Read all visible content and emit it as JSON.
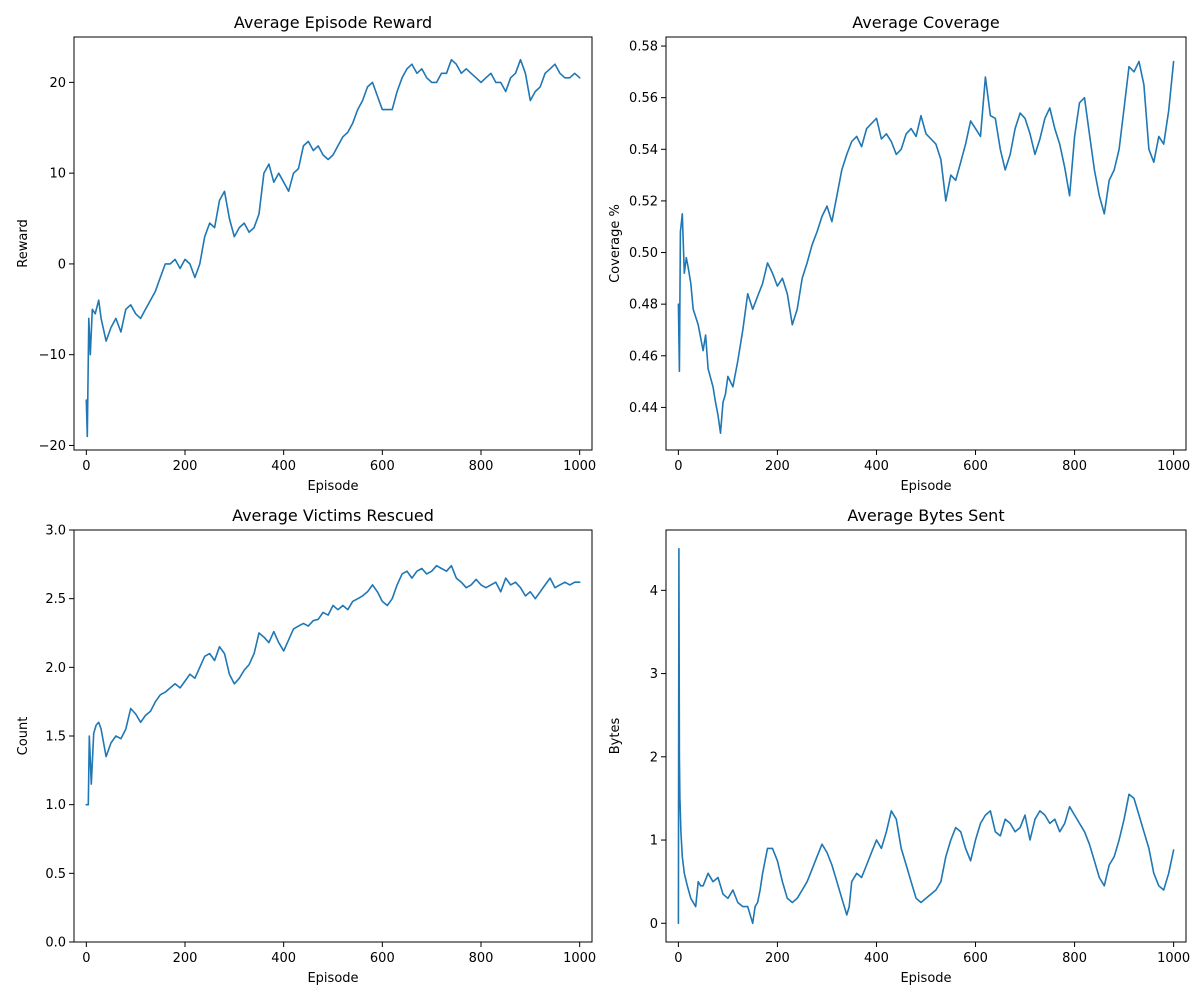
{
  "chart_data": [
    {
      "type": "line",
      "title": "Average Episode Reward",
      "xlabel": "Episode",
      "ylabel": "Reward",
      "xlim": [
        -25,
        1025
      ],
      "ylim": [
        -20.5,
        25
      ],
      "xticks": [
        0,
        200,
        400,
        600,
        800,
        1000
      ],
      "xtick_labels": [
        "0",
        "200",
        "400",
        "600",
        "800",
        "1000"
      ],
      "yticks": [
        -20,
        -10,
        0,
        10,
        20
      ],
      "ytick_labels": [
        "−20",
        "−10",
        "0",
        "10",
        "20"
      ],
      "grid": false,
      "series": [
        {
          "color": "#1f77b4",
          "x": [
            0,
            2,
            5,
            8,
            12,
            18,
            25,
            30,
            40,
            50,
            60,
            70,
            80,
            90,
            100,
            110,
            120,
            130,
            140,
            150,
            160,
            170,
            180,
            190,
            200,
            210,
            220,
            230,
            240,
            250,
            260,
            270,
            280,
            290,
            300,
            310,
            320,
            330,
            340,
            350,
            360,
            370,
            380,
            390,
            400,
            410,
            420,
            430,
            440,
            450,
            460,
            470,
            480,
            490,
            500,
            510,
            520,
            530,
            540,
            550,
            560,
            570,
            580,
            590,
            600,
            610,
            620,
            630,
            640,
            650,
            660,
            670,
            680,
            690,
            700,
            710,
            720,
            730,
            740,
            750,
            760,
            770,
            780,
            790,
            800,
            810,
            820,
            830,
            840,
            850,
            860,
            870,
            880,
            890,
            900,
            910,
            920,
            930,
            940,
            950,
            960,
            970,
            980,
            990,
            1000
          ],
          "y": [
            -15,
            -19,
            -6,
            -10,
            -5,
            -5.5,
            -4,
            -6,
            -8.5,
            -7,
            -6,
            -7.5,
            -5,
            -4.5,
            -5.5,
            -6,
            -5,
            -4,
            -3,
            -1.5,
            0,
            0,
            0.5,
            -0.5,
            0.5,
            0,
            -1.5,
            0,
            3,
            4.5,
            4,
            7,
            8,
            5,
            3,
            4,
            4.5,
            3.5,
            4,
            5.5,
            10,
            11,
            9,
            10,
            9,
            8,
            10,
            10.5,
            13,
            13.5,
            12.5,
            13,
            12,
            11.5,
            12,
            13,
            14,
            14.5,
            15.5,
            17,
            18,
            19.5,
            20,
            18.5,
            17,
            17,
            17,
            19,
            20.5,
            21.5,
            22,
            21,
            21.5,
            20.5,
            20,
            20,
            21,
            21,
            22.5,
            22,
            21,
            21.5,
            21,
            20.5,
            20,
            20.5,
            21,
            20,
            20,
            19,
            20.5,
            21,
            22.5,
            21,
            18,
            19,
            19.5,
            21,
            21.5,
            22,
            21,
            20.5,
            20.5,
            21,
            20.5
          ]
        }
      ]
    },
    {
      "type": "line",
      "title": "Average Coverage",
      "xlabel": "Episode",
      "ylabel": "Coverage %",
      "xlim": [
        -25,
        1025
      ],
      "ylim": [
        0.4235,
        0.5835
      ],
      "xticks": [
        0,
        200,
        400,
        600,
        800,
        1000
      ],
      "xtick_labels": [
        "0",
        "200",
        "400",
        "600",
        "800",
        "1000"
      ],
      "yticks": [
        0.44,
        0.46,
        0.48,
        0.5,
        0.52,
        0.54,
        0.56,
        0.58
      ],
      "ytick_labels": [
        "0.44",
        "0.46",
        "0.48",
        "0.50",
        "0.52",
        "0.54",
        "0.56",
        "0.58"
      ],
      "grid": false,
      "series": [
        {
          "color": "#1f77b4",
          "x": [
            0,
            2,
            4,
            8,
            12,
            16,
            20,
            25,
            30,
            40,
            50,
            55,
            60,
            70,
            75,
            80,
            85,
            90,
            95,
            100,
            110,
            120,
            130,
            140,
            150,
            160,
            170,
            180,
            190,
            200,
            210,
            220,
            230,
            240,
            250,
            260,
            270,
            280,
            290,
            300,
            310,
            320,
            330,
            340,
            350,
            360,
            370,
            380,
            390,
            400,
            410,
            420,
            430,
            440,
            450,
            460,
            470,
            480,
            490,
            500,
            510,
            520,
            530,
            540,
            550,
            560,
            570,
            580,
            590,
            600,
            610,
            620,
            630,
            640,
            650,
            660,
            670,
            680,
            690,
            700,
            710,
            720,
            730,
            740,
            750,
            760,
            770,
            780,
            790,
            800,
            810,
            820,
            830,
            840,
            850,
            860,
            870,
            880,
            890,
            900,
            910,
            920,
            930,
            940,
            950,
            960,
            970,
            980,
            990,
            1000
          ],
          "y": [
            0.48,
            0.454,
            0.508,
            0.515,
            0.492,
            0.498,
            0.494,
            0.488,
            0.478,
            0.472,
            0.462,
            0.468,
            0.455,
            0.448,
            0.442,
            0.437,
            0.43,
            0.442,
            0.445,
            0.452,
            0.448,
            0.458,
            0.47,
            0.484,
            0.478,
            0.483,
            0.488,
            0.496,
            0.492,
            0.487,
            0.49,
            0.484,
            0.472,
            0.478,
            0.49,
            0.496,
            0.503,
            0.508,
            0.514,
            0.518,
            0.512,
            0.522,
            0.532,
            0.538,
            0.543,
            0.545,
            0.541,
            0.548,
            0.55,
            0.552,
            0.544,
            0.546,
            0.543,
            0.538,
            0.54,
            0.546,
            0.548,
            0.545,
            0.553,
            0.546,
            0.544,
            0.542,
            0.536,
            0.52,
            0.53,
            0.528,
            0.535,
            0.542,
            0.551,
            0.548,
            0.545,
            0.568,
            0.553,
            0.552,
            0.54,
            0.532,
            0.538,
            0.548,
            0.554,
            0.552,
            0.546,
            0.538,
            0.544,
            0.552,
            0.556,
            0.548,
            0.542,
            0.533,
            0.522,
            0.545,
            0.558,
            0.56,
            0.546,
            0.532,
            0.522,
            0.515,
            0.528,
            0.532,
            0.54,
            0.556,
            0.572,
            0.57,
            0.574,
            0.565,
            0.54,
            0.535,
            0.545,
            0.542,
            0.555,
            0.574
          ]
        }
      ]
    },
    {
      "type": "line",
      "title": "Average Victims Rescued",
      "xlabel": "Episode",
      "ylabel": "Count",
      "xlim": [
        -25,
        1025
      ],
      "ylim": [
        0,
        3
      ],
      "xticks": [
        0,
        200,
        400,
        600,
        800,
        1000
      ],
      "xtick_labels": [
        "0",
        "200",
        "400",
        "600",
        "800",
        "1000"
      ],
      "yticks": [
        0,
        0.5,
        1.0,
        1.5,
        2.0,
        2.5,
        3.0
      ],
      "ytick_labels": [
        "0.0",
        "0.5",
        "1.0",
        "1.5",
        "2.0",
        "2.5",
        "3.0"
      ],
      "grid": false,
      "series": [
        {
          "color": "#1f77b4",
          "x": [
            0,
            4,
            6,
            10,
            15,
            20,
            25,
            30,
            40,
            50,
            60,
            70,
            80,
            90,
            100,
            110,
            120,
            130,
            140,
            150,
            160,
            170,
            180,
            190,
            200,
            210,
            220,
            230,
            240,
            250,
            260,
            270,
            280,
            290,
            300,
            310,
            320,
            330,
            340,
            350,
            360,
            370,
            380,
            390,
            400,
            410,
            420,
            430,
            440,
            450,
            460,
            470,
            480,
            490,
            500,
            510,
            520,
            530,
            540,
            550,
            560,
            570,
            580,
            590,
            600,
            610,
            620,
            630,
            640,
            650,
            660,
            670,
            680,
            690,
            700,
            710,
            720,
            730,
            740,
            750,
            760,
            770,
            780,
            790,
            800,
            810,
            820,
            830,
            840,
            850,
            860,
            870,
            880,
            890,
            900,
            910,
            920,
            930,
            940,
            950,
            960,
            970,
            980,
            990,
            1000
          ],
          "y": [
            1.0,
            1.0,
            1.5,
            1.15,
            1.52,
            1.58,
            1.6,
            1.55,
            1.35,
            1.45,
            1.5,
            1.48,
            1.55,
            1.7,
            1.66,
            1.6,
            1.65,
            1.68,
            1.75,
            1.8,
            1.82,
            1.85,
            1.88,
            1.85,
            1.9,
            1.95,
            1.92,
            2.0,
            2.08,
            2.1,
            2.05,
            2.15,
            2.1,
            1.95,
            1.88,
            1.92,
            1.98,
            2.02,
            2.1,
            2.25,
            2.22,
            2.18,
            2.26,
            2.18,
            2.12,
            2.2,
            2.28,
            2.3,
            2.32,
            2.3,
            2.34,
            2.35,
            2.4,
            2.38,
            2.45,
            2.42,
            2.45,
            2.42,
            2.48,
            2.5,
            2.52,
            2.55,
            2.6,
            2.55,
            2.48,
            2.45,
            2.5,
            2.6,
            2.68,
            2.7,
            2.65,
            2.7,
            2.72,
            2.68,
            2.7,
            2.74,
            2.72,
            2.7,
            2.74,
            2.65,
            2.62,
            2.58,
            2.6,
            2.64,
            2.6,
            2.58,
            2.6,
            2.62,
            2.55,
            2.65,
            2.6,
            2.62,
            2.58,
            2.52,
            2.55,
            2.5,
            2.55,
            2.6,
            2.65,
            2.58,
            2.6,
            2.62,
            2.6,
            2.62,
            2.62
          ]
        }
      ]
    },
    {
      "type": "line",
      "title": "Average Bytes Sent",
      "xlabel": "Episode",
      "ylabel": "Bytes",
      "xlim": [
        -25,
        1025
      ],
      "ylim": [
        -0.225,
        4.725
      ],
      "xticks": [
        0,
        200,
        400,
        600,
        800,
        1000
      ],
      "xtick_labels": [
        "0",
        "200",
        "400",
        "600",
        "800",
        "1000"
      ],
      "yticks": [
        0,
        1,
        2,
        3,
        4
      ],
      "ytick_labels": [
        "0",
        "1",
        "2",
        "3",
        "4"
      ],
      "grid": false,
      "series": [
        {
          "color": "#1f77b4",
          "x": [
            0,
            1,
            2,
            3,
            5,
            8,
            12,
            18,
            25,
            35,
            40,
            45,
            50,
            60,
            70,
            80,
            90,
            100,
            110,
            120,
            130,
            140,
            150,
            155,
            160,
            165,
            170,
            180,
            190,
            200,
            210,
            220,
            230,
            240,
            250,
            260,
            270,
            280,
            290,
            300,
            310,
            320,
            330,
            340,
            345,
            350,
            360,
            370,
            380,
            390,
            400,
            410,
            420,
            430,
            440,
            450,
            460,
            470,
            480,
            490,
            500,
            510,
            520,
            530,
            540,
            550,
            560,
            570,
            580,
            590,
            600,
            610,
            620,
            630,
            640,
            650,
            660,
            670,
            680,
            690,
            700,
            710,
            720,
            730,
            740,
            750,
            760,
            770,
            780,
            790,
            800,
            810,
            820,
            830,
            840,
            850,
            860,
            870,
            880,
            890,
            900,
            910,
            920,
            930,
            940,
            950,
            960,
            970,
            980,
            990,
            1000
          ],
          "y": [
            0,
            4.5,
            2.0,
            1.5,
            1.1,
            0.8,
            0.6,
            0.45,
            0.3,
            0.2,
            0.5,
            0.45,
            0.45,
            0.6,
            0.5,
            0.55,
            0.35,
            0.3,
            0.4,
            0.25,
            0.2,
            0.2,
            0.0,
            0.2,
            0.25,
            0.4,
            0.6,
            0.9,
            0.9,
            0.75,
            0.5,
            0.3,
            0.25,
            0.3,
            0.4,
            0.5,
            0.65,
            0.8,
            0.95,
            0.85,
            0.7,
            0.5,
            0.3,
            0.1,
            0.2,
            0.5,
            0.6,
            0.55,
            0.7,
            0.85,
            1.0,
            0.9,
            1.1,
            1.35,
            1.25,
            0.9,
            0.7,
            0.5,
            0.3,
            0.25,
            0.3,
            0.35,
            0.4,
            0.5,
            0.8,
            1.0,
            1.15,
            1.1,
            0.9,
            0.75,
            1.0,
            1.2,
            1.3,
            1.35,
            1.1,
            1.05,
            1.25,
            1.2,
            1.1,
            1.15,
            1.3,
            1.0,
            1.25,
            1.35,
            1.3,
            1.2,
            1.25,
            1.1,
            1.2,
            1.4,
            1.3,
            1.2,
            1.1,
            0.95,
            0.75,
            0.55,
            0.45,
            0.7,
            0.8,
            1.0,
            1.25,
            1.55,
            1.5,
            1.3,
            1.1,
            0.9,
            0.6,
            0.45,
            0.4,
            0.6,
            0.88
          ]
        }
      ]
    }
  ]
}
